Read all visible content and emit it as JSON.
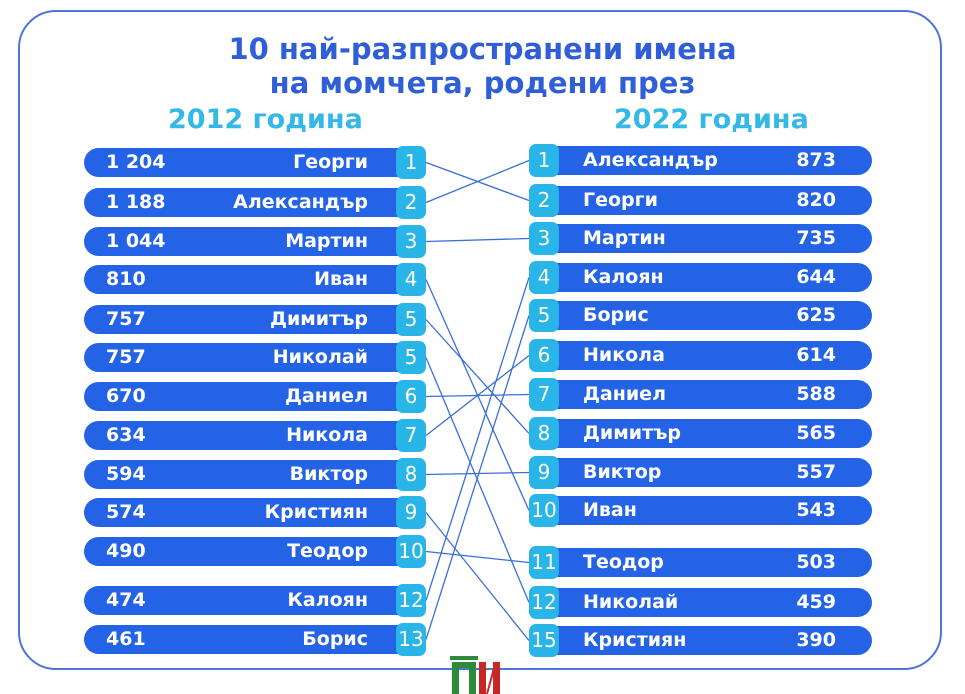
{
  "title_line1": "10 най-разпространени имена",
  "title_line2": "на момчета, родени през",
  "chart_data": {
    "type": "table",
    "left": {
      "label": "2012 година",
      "rows": [
        {
          "count": "1 204",
          "name": "Георги",
          "rank": "1"
        },
        {
          "count": "1 188",
          "name": "Александър",
          "rank": "2"
        },
        {
          "count": "1 044",
          "name": "Мартин",
          "rank": "3"
        },
        {
          "count": "810",
          "name": "Иван",
          "rank": "4"
        },
        {
          "count": "757",
          "name": "Димитър",
          "rank": "5"
        },
        {
          "count": "757",
          "name": "Николай",
          "rank": "5"
        },
        {
          "count": "670",
          "name": "Даниел",
          "rank": "6"
        },
        {
          "count": "634",
          "name": "Никола",
          "rank": "7"
        },
        {
          "count": "594",
          "name": "Виктор",
          "rank": "8"
        },
        {
          "count": "574",
          "name": "Кристиян",
          "rank": "9"
        },
        {
          "count": "490",
          "name": "Теодор",
          "rank": "10"
        },
        {
          "count": "474",
          "name": "Калоян",
          "rank": "12"
        },
        {
          "count": "461",
          "name": "Борис",
          "rank": "13"
        }
      ]
    },
    "right": {
      "label": "2022 година",
      "rows": [
        {
          "rank": "1",
          "name": "Александър",
          "count": "873"
        },
        {
          "rank": "2",
          "name": "Георги",
          "count": "820"
        },
        {
          "rank": "3",
          "name": "Мартин",
          "count": "735"
        },
        {
          "rank": "4",
          "name": "Калоян",
          "count": "644"
        },
        {
          "rank": "5",
          "name": "Борис",
          "count": "625"
        },
        {
          "rank": "6",
          "name": "Никола",
          "count": "614"
        },
        {
          "rank": "7",
          "name": "Даниел",
          "count": "588"
        },
        {
          "rank": "8",
          "name": "Димитър",
          "count": "565"
        },
        {
          "rank": "9",
          "name": "Виктор",
          "count": "557"
        },
        {
          "rank": "10",
          "name": "Иван",
          "count": "543"
        },
        {
          "rank": "11",
          "name": "Теодор",
          "count": "503"
        },
        {
          "rank": "12",
          "name": "Николай",
          "count": "459"
        },
        {
          "rank": "15",
          "name": "Кристиян",
          "count": "390"
        }
      ]
    }
  },
  "colors": {
    "title": "#2f5ed6",
    "year": "#33b8e8",
    "row": "#2463e6",
    "badge": "#29b5e8",
    "connector": "#3a6fd8"
  }
}
